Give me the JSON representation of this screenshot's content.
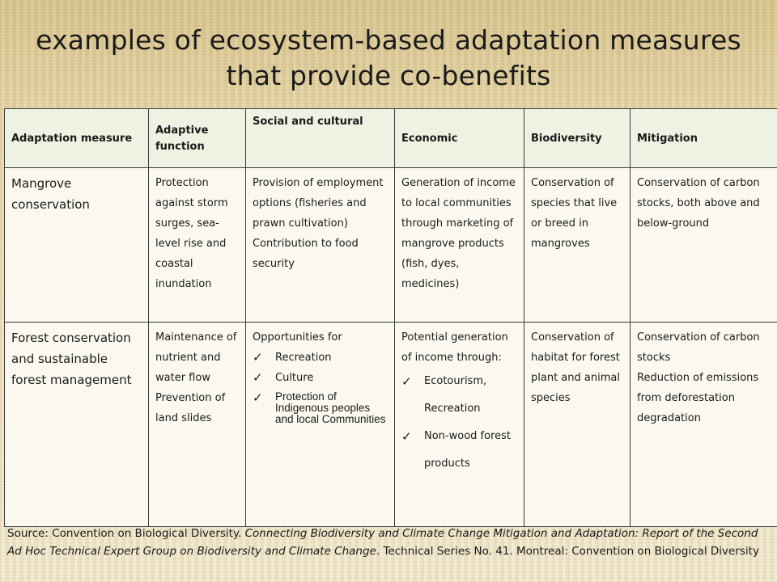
{
  "title_line1": "examples of ecosystem-based adaptation measures",
  "title_line2": "that provide co-benefits",
  "table": {
    "headers": [
      "Adaptation measure",
      "Adaptive function",
      "Social and cultural",
      "Economic",
      "Biodiversity",
      "Mitigation"
    ],
    "rows": [
      {
        "measure": "Mangrove conservation",
        "adaptive": "Protection against storm surges, sea-level rise and coastal inundation",
        "social_p1": "Provision of employment options (fisheries and prawn cultivation)",
        "social_p2": "Contribution to food security",
        "economic": "Generation of income to local communities through marketing of mangrove products (fish, dyes, medicines)",
        "biodiversity": "Conservation of species that live or breed in mangroves",
        "mitigation": "Conservation of carbon stocks, both above and below-ground"
      },
      {
        "measure": "Forest conservation and sustainable forest management",
        "adaptive_p1": "Maintenance of nutrient and water flow",
        "adaptive_p2": "Prevention of land slides",
        "social_intro": "Opportunities for",
        "social_items": [
          "Recreation",
          "Culture",
          "Protection of Indigenous peoples and local Communities"
        ],
        "economic_intro": "Potential generation of income through:",
        "economic_items": [
          "Ecotourism, Recreation",
          "Non-wood forest products"
        ],
        "biodiversity": "Conservation of habitat for forest plant and animal species",
        "mitigation_p1": "Conservation of carbon stocks",
        "mitigation_p2": "Reduction of emissions from deforestation degradation"
      }
    ]
  },
  "check_glyph": "✓",
  "source": {
    "prefix": "Source: Convention on Biological Diversity. ",
    "italic": "Connecting Biodiversity and Climate Change Mitigation and Adaptation: Report of the Second Ad Hoc Technical Expert Group on Biodiversity and Climate Change",
    "suffix": ". Technical Series No. 41. Montreal: Convention on Biological Diversity"
  }
}
